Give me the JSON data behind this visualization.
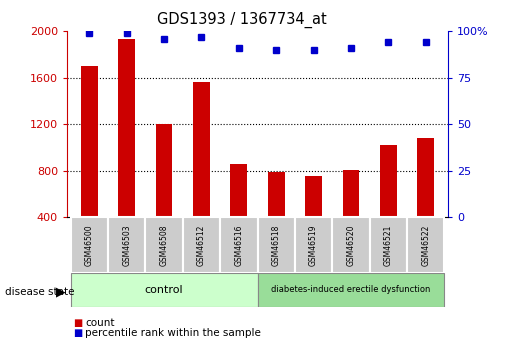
{
  "title": "GDS1393 / 1367734_at",
  "categories": [
    "GSM46500",
    "GSM46503",
    "GSM46508",
    "GSM46512",
    "GSM46516",
    "GSM46518",
    "GSM46519",
    "GSM46520",
    "GSM46521",
    "GSM46522"
  ],
  "bar_values": [
    1700,
    1930,
    1200,
    1560,
    860,
    790,
    755,
    810,
    1020,
    1080
  ],
  "percentile_values": [
    99,
    99,
    96,
    97,
    91,
    90,
    90,
    91,
    94,
    94
  ],
  "bar_color": "#cc0000",
  "dot_color": "#0000cc",
  "ylim_left": [
    400,
    2000
  ],
  "ylim_right": [
    0,
    100
  ],
  "yticks_left": [
    400,
    800,
    1200,
    1600,
    2000
  ],
  "yticks_right": [
    0,
    25,
    50,
    75,
    100
  ],
  "grid_values": [
    800,
    1200,
    1600
  ],
  "control_count": 5,
  "disease_count": 5,
  "control_label": "control",
  "disease_label": "diabetes-induced erectile dysfunction",
  "control_bg": "#ccffcc",
  "disease_bg": "#99dd99",
  "sample_bg": "#cccccc",
  "legend_count_label": "count",
  "legend_pct_label": "percentile rank within the sample",
  "disease_state_label": "disease state"
}
